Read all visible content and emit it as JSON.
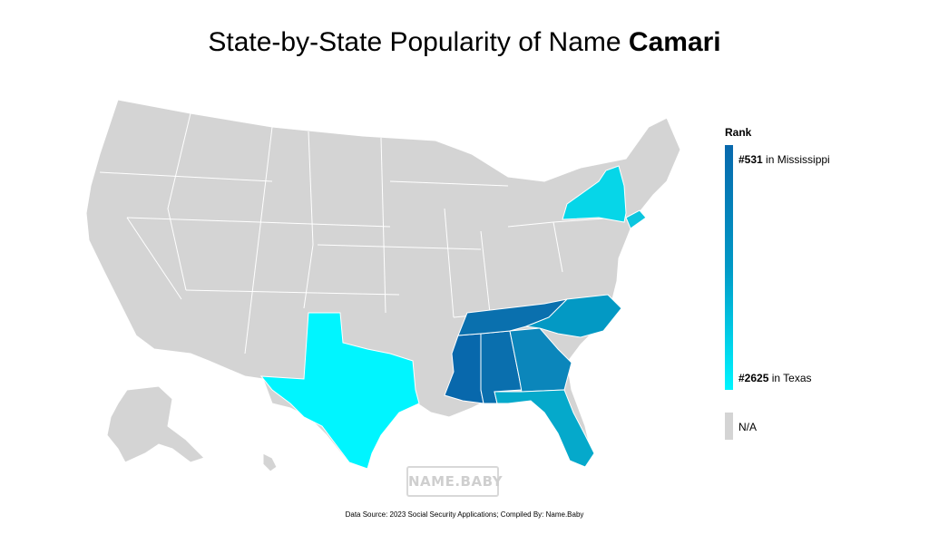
{
  "title": {
    "prefix": "State-by-State Popularity of Name ",
    "name": "Camari"
  },
  "legend": {
    "title": "Rank",
    "top": {
      "rank": "#531",
      "text": " in Mississippi"
    },
    "bottom": {
      "rank": "#2625",
      "text": " in Texas"
    },
    "na_label": "N/A",
    "colors": {
      "high": "#0868ac",
      "low": "#00f5ff",
      "na": "#d4d4d4"
    }
  },
  "states": [
    {
      "name": "Mississippi",
      "rank": 531,
      "color": "#0868ac"
    },
    {
      "name": "Alabama",
      "rank": null,
      "color": "#0a6fae"
    },
    {
      "name": "Tennessee",
      "rank": null,
      "color": "#0a70ae"
    },
    {
      "name": "Georgia",
      "rank": null,
      "color": "#0b86bb"
    },
    {
      "name": "North Carolina",
      "rank": null,
      "color": "#0399c4"
    },
    {
      "name": "Florida",
      "rank": null,
      "color": "#05a9cb"
    },
    {
      "name": "New York",
      "rank": null,
      "color": "#06d6e8"
    },
    {
      "name": "New Jersey",
      "rank": null,
      "color": "#0bc6df"
    },
    {
      "name": "Texas",
      "rank": 2625,
      "color": "#00f5ff"
    }
  ],
  "logo": "NAME.BABY",
  "source": "Data Source: 2023 Social Security Applications; Compiled By: Name.Baby"
}
